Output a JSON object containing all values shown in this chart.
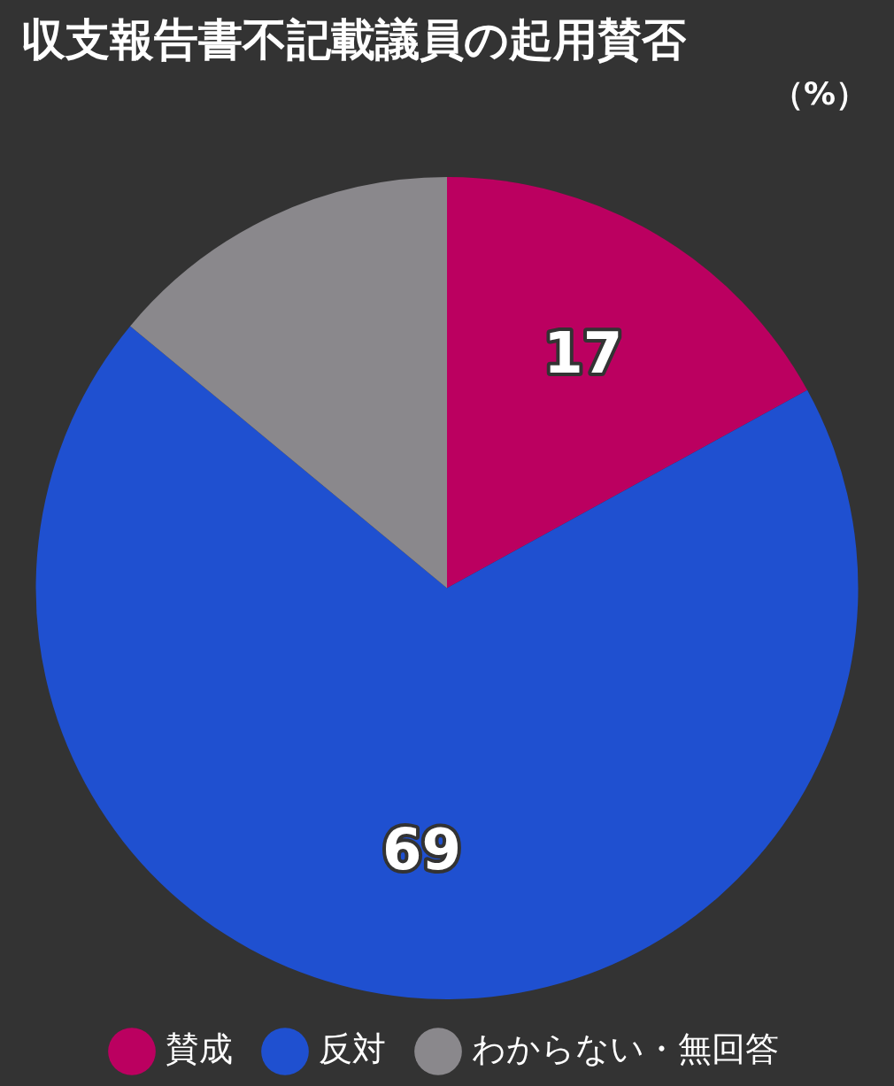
{
  "chart_data": {
    "type": "pie",
    "title": "収支報告書不記載議員の起用賛否",
    "subtitle": "（%）",
    "categories": [
      "賛成",
      "反対",
      "わからない・無回答"
    ],
    "values": [
      17,
      69,
      14
    ],
    "colors": [
      "#bb0060",
      "#1f50d0",
      "#8a888c"
    ],
    "value_labels": [
      "17",
      "69",
      null
    ],
    "legend": "bottom"
  }
}
